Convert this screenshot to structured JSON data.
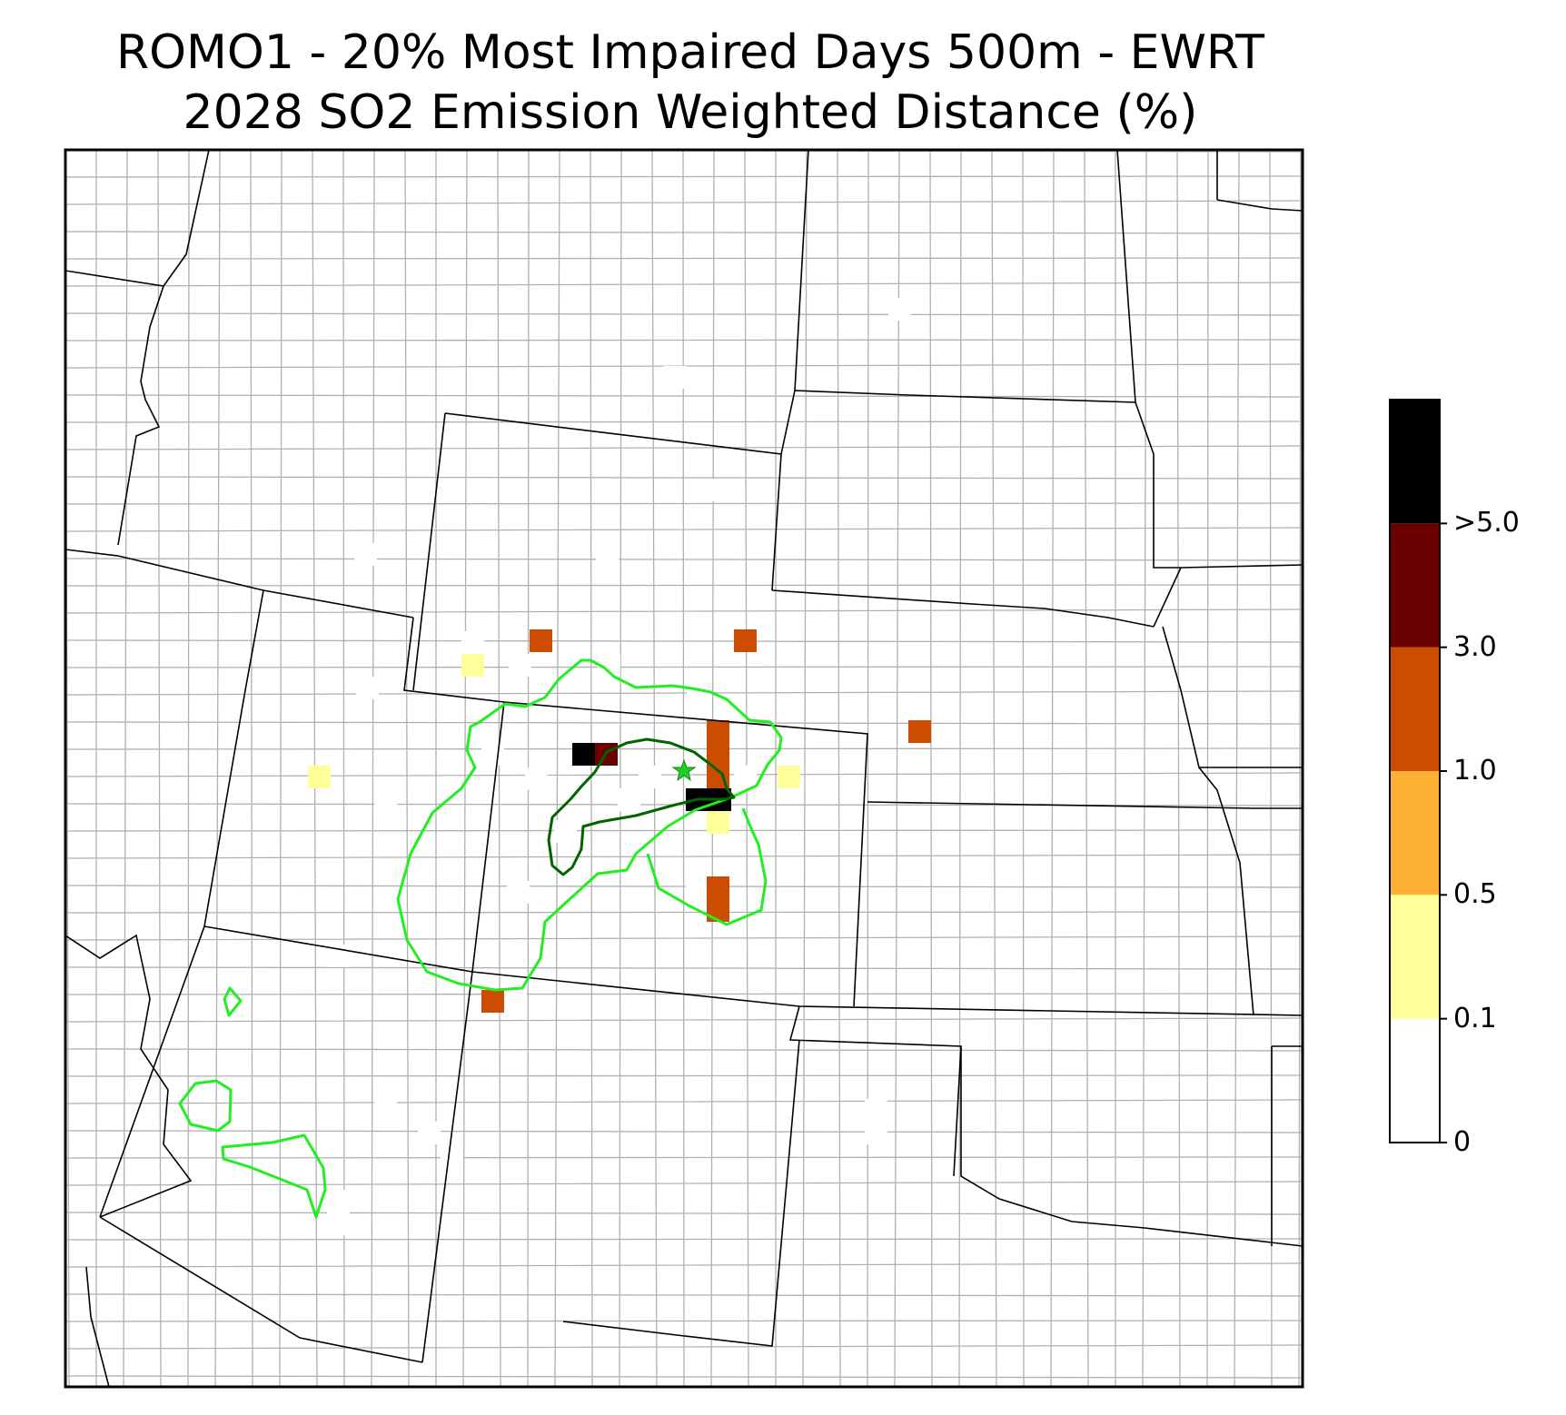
{
  "title": {
    "line1": "ROMO1 - 20% Most Impaired Days 500m - EWRT",
    "line2": "2028 SO2 Emission Weighted Distance (%)"
  },
  "colorbar": {
    "ticks": [
      "0",
      "0.1",
      "0.5",
      "1.0",
      "3.0",
      ">5.0"
    ],
    "bins": [
      {
        "label": "0-0.1",
        "color": "#ffffff"
      },
      {
        "label": "0.1-0.5",
        "color": "#ffff99"
      },
      {
        "label": "0.5-1.0",
        "color": "#fdb134"
      },
      {
        "label": "1.0-3.0",
        "color": "#cc4c02"
      },
      {
        "label": "3.0-5.0",
        "color": "#6b0000"
      },
      {
        "label": ">5.0",
        "color": "#000000"
      }
    ]
  },
  "map": {
    "site_marker": "green-star-icon",
    "contour_colors": {
      "outer": "#22ee22",
      "inner": "#006400"
    },
    "state_line_color": "#000000",
    "county_line_color": "#b0b0b0"
  }
}
